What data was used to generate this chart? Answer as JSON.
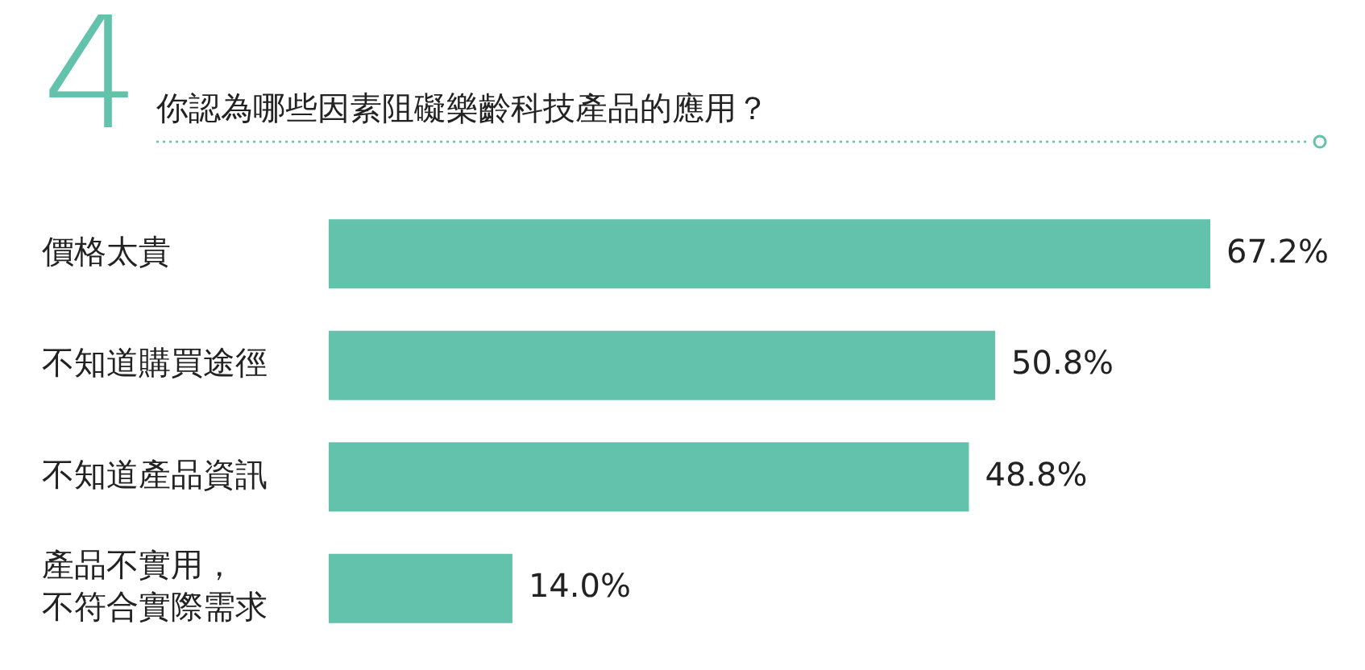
{
  "chart_data": {
    "type": "bar",
    "orientation": "horizontal",
    "title": "你認為哪些因素阻礙樂齡科技產品的應用？",
    "annotations": [
      "4"
    ],
    "categories": [
      "價格太貴",
      "不知道購買途徑",
      "不知道產品資訊",
      "產品不實用，不符合實際需求"
    ],
    "values": [
      67.2,
      50.8,
      48.8,
      14.0
    ],
    "color": "#63c2ac",
    "value_labels": [
      "67.2%",
      "50.8%",
      "48.8%",
      "14.0%"
    ],
    "legend": false
  }
}
